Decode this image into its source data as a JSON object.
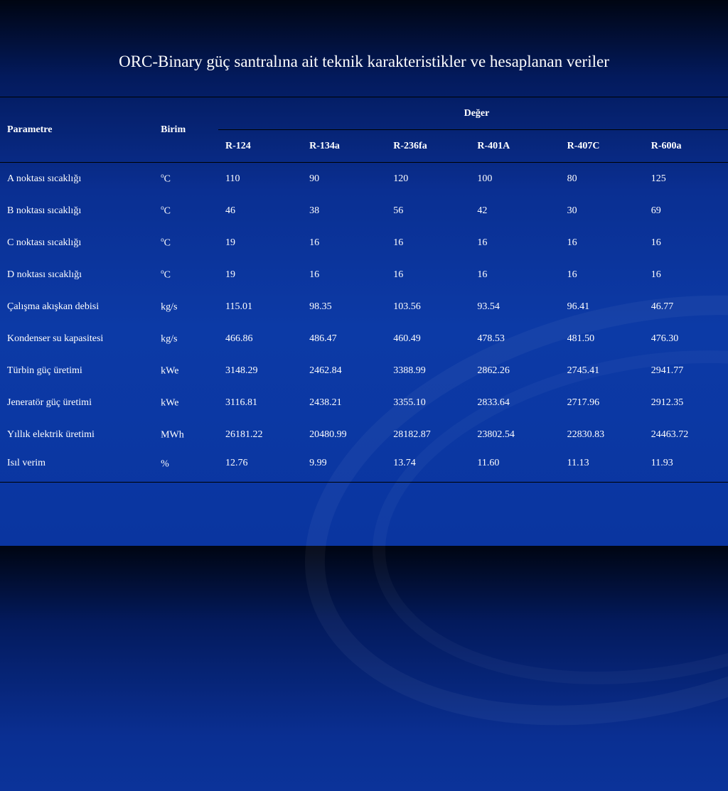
{
  "title": "ORC-Binary güç santralına ait teknik karakteristikler ve hesaplanan veriler",
  "header": {
    "parametre": "Parametre",
    "birim": "Birim",
    "deger": "Değer",
    "columns": [
      "R-124",
      "R-134a",
      "R-236fa",
      "R-401A",
      "R-407C",
      "R-600a"
    ]
  },
  "rows": [
    {
      "param": "A noktası sıcaklığı",
      "unit_sup": "o",
      "unit": "C",
      "values": [
        "110",
        "90",
        "120",
        "100",
        "80",
        "125"
      ]
    },
    {
      "param": "B noktası sıcaklığı",
      "unit_sup": "o",
      "unit": "C",
      "values": [
        "46",
        "38",
        "56",
        "42",
        "30",
        "69"
      ]
    },
    {
      "param": "C noktası sıcaklığı",
      "unit_sup": "o",
      "unit": "C",
      "values": [
        "19",
        "16",
        "16",
        "16",
        "16",
        "16"
      ]
    },
    {
      "param": "D noktası sıcaklığı",
      "unit_sup": "o",
      "unit": "C",
      "values": [
        "19",
        "16",
        "16",
        "16",
        "16",
        "16"
      ]
    },
    {
      "param": "Çalışma akışkan debisi",
      "unit_sup": "",
      "unit": "kg/s",
      "values": [
        "115.01",
        "98.35",
        "103.56",
        "93.54",
        "96.41",
        "46.77"
      ]
    },
    {
      "param": "Kondenser su kapasitesi",
      "unit_sup": "",
      "unit": "kg/s",
      "values": [
        "466.86",
        "486.47",
        "460.49",
        "478.53",
        "481.50",
        "476.30"
      ]
    },
    {
      "param": "Türbin güç üretimi",
      "unit_sup": "",
      "unit": "kWe",
      "values": [
        "3148.29",
        "2462.84",
        "3388.99",
        "2862.26",
        "2745.41",
        "2941.77"
      ]
    },
    {
      "param": "Jeneratör güç üretimi",
      "unit_sup": "",
      "unit": "kWe",
      "values": [
        "3116.81",
        "2438.21",
        "3355.10",
        "2833.64",
        "2717.96",
        "2912.35"
      ]
    },
    {
      "param": "Yıllık elektrik üretimi",
      "unit_sup": "",
      "unit": "MWh",
      "values": [
        "26181.22",
        "20480.99",
        "28182.87",
        "23802.54",
        "22830.83",
        "24463.72"
      ]
    },
    {
      "param": "Isıl verim",
      "unit_sup": "",
      "unit": "%",
      "values": [
        "12.76",
        "9.99",
        "13.74",
        "11.60",
        "11.13",
        "11.93"
      ]
    }
  ]
}
